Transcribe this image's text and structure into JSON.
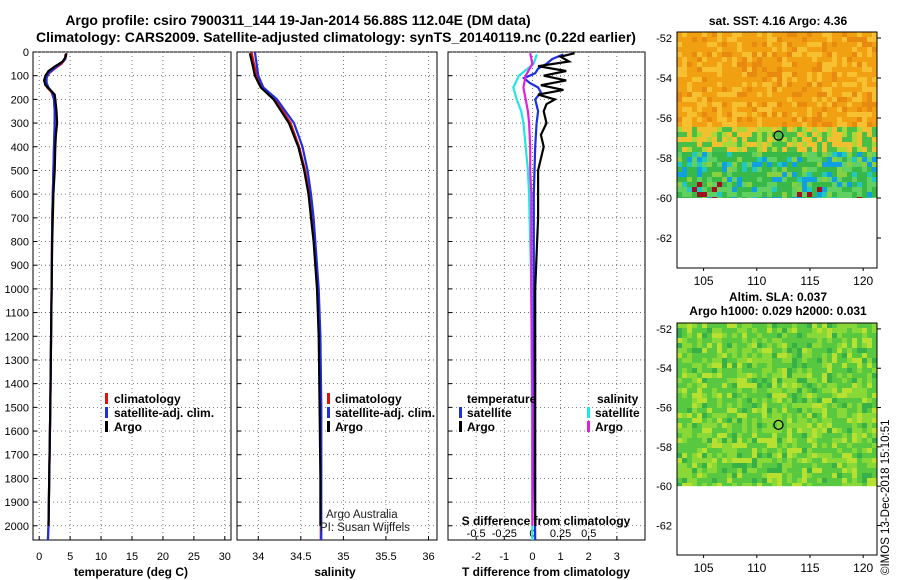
{
  "header": {
    "title_line1": "Argo profile: csiro 7900311_144 19-Jan-2014 56.88S 112.04E (DM data)",
    "title_line2": "Climatology: CARS2009. Satellite-adjusted climatology: synTS_20140119.nc (0.22d earlier)"
  },
  "colors": {
    "climatology": "#e01010",
    "satellite": "#1f2fe0",
    "argo": "#000000",
    "sat_salinity": "#22e5e5",
    "argo_salinity": "#e020e0"
  },
  "chart_data": [
    {
      "id": "temperature",
      "type": "line",
      "xlabel": "temperature (deg C)",
      "ylabel": "",
      "xlim": [
        -1,
        31
      ],
      "ylim": [
        2060,
        0
      ],
      "x_ticks": [
        "0",
        "5",
        "10",
        "15",
        "20",
        "25",
        "30"
      ],
      "y_ticks": [
        "0",
        "100",
        "200",
        "300",
        "400",
        "500",
        "600",
        "700",
        "800",
        "900",
        "1000",
        "1100",
        "1200",
        "1300",
        "1400",
        "1500",
        "1600",
        "1700",
        "1800",
        "1900",
        "2000"
      ],
      "grid": true,
      "legend": [
        "climatology",
        "satellite-adj. clim.",
        "Argo"
      ],
      "series": [
        {
          "name": "climatology",
          "depth": [
            10,
            30,
            50,
            70,
            90,
            110,
            130,
            150,
            170,
            200,
            250,
            300,
            400,
            500,
            700,
            1000,
            1500,
            2000,
            2060
          ],
          "values": [
            4.2,
            4.2,
            3.6,
            2.5,
            1.6,
            1.1,
            1.0,
            1.3,
            2.0,
            2.4,
            2.5,
            2.5,
            2.4,
            2.3,
            2.1,
            2.0,
            1.8,
            1.5,
            1.4
          ]
        },
        {
          "name": "satellite-adj. clim.",
          "depth": [
            10,
            30,
            50,
            70,
            90,
            110,
            130,
            150,
            170,
            200,
            250,
            300,
            400,
            500,
            700,
            1000,
            1500,
            2000,
            2060
          ],
          "values": [
            4.3,
            4.2,
            3.4,
            2.4,
            1.5,
            1.2,
            1.2,
            1.5,
            2.1,
            2.4,
            2.5,
            2.5,
            2.4,
            2.3,
            2.1,
            2.0,
            1.8,
            1.5,
            1.4
          ]
        },
        {
          "name": "Argo",
          "depth": [
            5,
            20,
            40,
            60,
            80,
            100,
            120,
            140,
            160,
            180,
            200,
            250,
            300,
            350,
            400,
            500,
            600,
            700,
            800,
            1000,
            1500,
            2000
          ],
          "values": [
            4.4,
            4.3,
            3.8,
            2.6,
            1.5,
            1.0,
            0.8,
            1.0,
            1.8,
            2.5,
            2.6,
            2.8,
            2.9,
            2.7,
            2.6,
            2.5,
            2.3,
            2.2,
            2.1,
            2.0,
            1.8,
            1.5
          ]
        }
      ]
    },
    {
      "id": "salinity",
      "type": "line",
      "xlabel": "salinity",
      "xlim": [
        33.75,
        36.1
      ],
      "ylim": [
        2060,
        0
      ],
      "x_ticks": [
        "34",
        "34.5",
        "35",
        "35.5",
        "36"
      ],
      "grid": true,
      "legend": [
        "climatology",
        "satellite-adj. clim.",
        "Argo"
      ],
      "series": [
        {
          "name": "climatology",
          "depth": [
            0,
            50,
            100,
            150,
            200,
            300,
            400,
            500,
            600,
            700,
            800,
            1000,
            1200,
            1500,
            1800,
            2060
          ],
          "values": [
            33.92,
            33.95,
            33.98,
            34.05,
            34.2,
            34.38,
            34.48,
            34.55,
            34.6,
            34.63,
            34.66,
            34.7,
            34.72,
            34.73,
            34.735,
            34.735
          ]
        },
        {
          "name": "satellite-adj. clim.",
          "depth": [
            0,
            50,
            100,
            150,
            200,
            300,
            400,
            500,
            600,
            700,
            800,
            1000,
            1200,
            1500,
            1800,
            2060
          ],
          "values": [
            33.96,
            33.98,
            34.0,
            34.06,
            34.22,
            34.42,
            34.52,
            34.58,
            34.62,
            34.65,
            34.67,
            34.71,
            34.73,
            34.74,
            34.74,
            34.74
          ]
        },
        {
          "name": "Argo",
          "depth": [
            5,
            50,
            100,
            150,
            200,
            300,
            400,
            500,
            600,
            700,
            800,
            1000,
            1200,
            1500,
            1800,
            2000
          ],
          "values": [
            33.9,
            33.93,
            33.96,
            34.03,
            34.18,
            34.36,
            34.47,
            34.54,
            34.59,
            34.62,
            34.65,
            34.69,
            34.71,
            34.72,
            34.73,
            34.73
          ]
        }
      ],
      "annotations": [
        "Argo Australia",
        "PI: Susan Wijffels"
      ]
    },
    {
      "id": "difference",
      "type": "line",
      "xlabel": "T difference from climatology",
      "xlabel_top": "S difference from climatology",
      "xlim": [
        -3,
        4
      ],
      "ylim": [
        2060,
        0
      ],
      "x_ticks": [
        "-2",
        "-1",
        "0",
        "1",
        "2",
        "3"
      ],
      "x_ticks_top": [
        "-0.5",
        "-0.25",
        "0",
        "0.25",
        "0.5"
      ],
      "grid": true,
      "legend_temperature_title": "temperature",
      "legend_salinity_title": "salinity",
      "legend_temperature": [
        "satellite",
        "Argo"
      ],
      "legend_salinity": [
        "satellite",
        "Argo"
      ],
      "series": [
        {
          "name": "T satellite",
          "depth": [
            10,
            30,
            50,
            70,
            90,
            110,
            130,
            150,
            170,
            200,
            250,
            300,
            400,
            600,
            800,
            1000,
            1500,
            2060
          ],
          "values": [
            1.1,
            0.7,
            0.5,
            0.2,
            0.1,
            -0.3,
            -0.1,
            0.2,
            0.3,
            0.1,
            0.2,
            0.15,
            0.1,
            0.05,
            0.05,
            0.05,
            0.05,
            0.1
          ]
        },
        {
          "name": "T Argo",
          "depth": [
            5,
            20,
            40,
            60,
            80,
            100,
            120,
            140,
            160,
            180,
            200,
            220,
            250,
            300,
            350,
            400,
            500,
            700,
            1000,
            1500,
            2000
          ],
          "values": [
            1.5,
            1.0,
            1.3,
            0.2,
            1.2,
            0.4,
            1.2,
            0.3,
            1.1,
            0.2,
            0.8,
            0.5,
            0.4,
            0.5,
            0.3,
            0.4,
            0.2,
            0.2,
            0.1,
            0.1,
            0.1
          ]
        },
        {
          "name": "S satellite",
          "depth": [
            10,
            50,
            100,
            150,
            200,
            250,
            300,
            400,
            500,
            600,
            800,
            1000,
            1500,
            2060
          ],
          "values": [
            0.04,
            0.01,
            -0.12,
            -0.17,
            -0.14,
            -0.1,
            -0.08,
            -0.06,
            -0.04,
            -0.03,
            -0.02,
            -0.01,
            -0.005,
            0
          ]
        },
        {
          "name": "S Argo",
          "depth": [
            5,
            50,
            100,
            150,
            200,
            250,
            300,
            400,
            500,
            600,
            800,
            1000,
            1500,
            2000
          ],
          "values": [
            -0.02,
            0.0,
            -0.06,
            -0.08,
            -0.06,
            -0.04,
            -0.03,
            -0.02,
            -0.02,
            -0.01,
            -0.01,
            -0.01,
            0,
            0
          ]
        }
      ]
    },
    {
      "id": "sst_map",
      "type": "heatmap",
      "title": "sat. SST: 4.16 Argo: 4.36",
      "x_ticks": [
        "105",
        "110",
        "115",
        "120"
      ],
      "y_ticks": [
        "-52",
        "-54",
        "-56",
        "-58",
        "-60",
        "-62"
      ],
      "xlim": [
        102.5,
        121.3
      ],
      "ylim": [
        -63.5,
        -51.7
      ],
      "marker": {
        "lon": 112.04,
        "lat": -56.88
      }
    },
    {
      "id": "sla_map",
      "type": "heatmap",
      "title": "Altim. SLA: 0.037",
      "subtitle": "Argo h1000: 0.029 h2000: 0.031",
      "x_ticks": [
        "105",
        "110",
        "115",
        "120"
      ],
      "y_ticks": [
        "-52",
        "-54",
        "-56",
        "-58",
        "-60",
        "-62"
      ],
      "xlim": [
        102.5,
        121.3
      ],
      "ylim": [
        -63.5,
        -51.7
      ],
      "marker": {
        "lon": 112.04,
        "lat": -56.88
      }
    }
  ],
  "footer": {
    "credit": "©IMOS 13-Dec-2018 15:10:51"
  }
}
